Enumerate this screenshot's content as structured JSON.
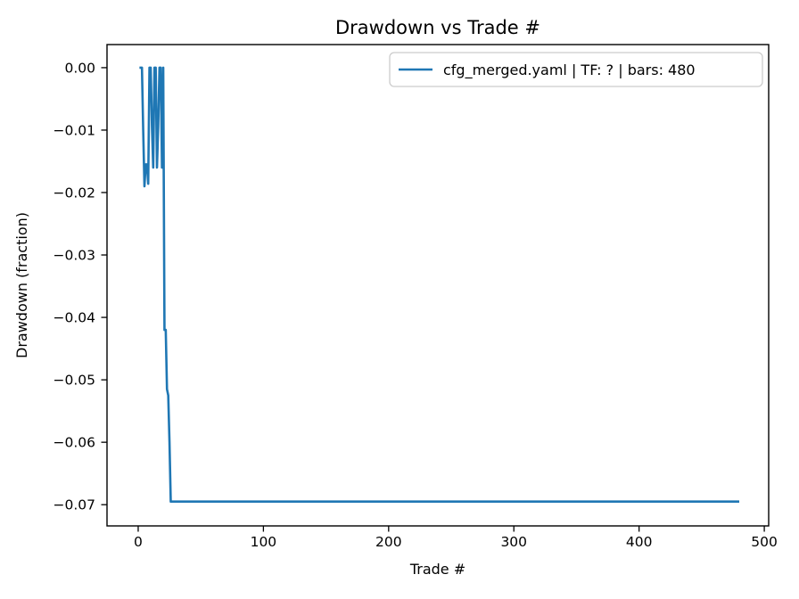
{
  "chart_data": {
    "type": "line",
    "title": "Drawdown vs Trade #",
    "xlabel": "Trade #",
    "ylabel": "Drawdown (fraction)",
    "legend_position": "upper right",
    "grid": false,
    "line_color": "#1f77b4",
    "spine_color": "#000000",
    "legend_border_color": "#cccccc",
    "background_color": "#ffffff",
    "xlim": [
      -24.9,
      503.5
    ],
    "ylim": [
      -0.0734,
      0.0037
    ],
    "xticks": [
      0,
      100,
      200,
      300,
      400,
      500
    ],
    "yticks": [
      0.0,
      -0.01,
      -0.02,
      -0.03,
      -0.04,
      -0.05,
      -0.06,
      -0.07
    ],
    "series": [
      {
        "name": "cfg_merged.yaml | TF: ? | bars: 480",
        "color": "#1f77b4",
        "x": [
          1,
          2,
          3,
          4,
          5,
          6,
          7,
          8,
          9,
          10,
          11,
          12,
          13,
          14,
          15,
          16,
          17,
          18,
          19,
          20,
          21,
          22,
          23,
          24,
          25,
          26,
          27,
          480
        ],
        "y": [
          0,
          0,
          0,
          -0.01,
          -0.019,
          -0.0155,
          -0.0155,
          -0.0186,
          0,
          0,
          -0.0095,
          -0.016,
          0,
          0,
          -0.016,
          -0.0095,
          0,
          0,
          -0.016,
          0,
          -0.042,
          -0.042,
          -0.0515,
          -0.0525,
          -0.06,
          -0.0695,
          -0.0695,
          -0.0695
        ]
      }
    ]
  }
}
